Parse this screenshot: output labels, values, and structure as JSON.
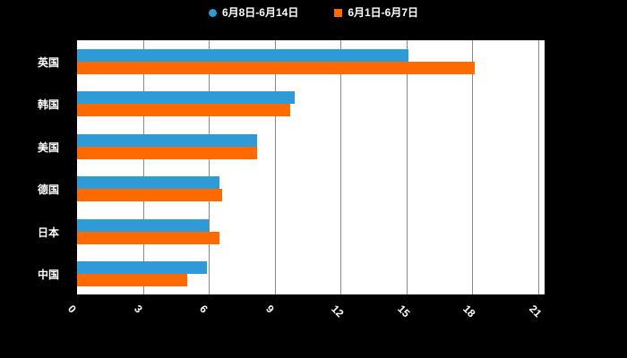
{
  "chart_data": {
    "type": "bar",
    "orientation": "horizontal",
    "title": "",
    "xlabel": "",
    "ylabel": "",
    "categories": [
      "英国",
      "韩国",
      "美国",
      "德国",
      "日本",
      "中国"
    ],
    "series": [
      {
        "name": "6月8日-6月14日",
        "color": "#2E9BD6",
        "marker": "circle",
        "values": [
          15.1,
          9.9,
          8.2,
          6.5,
          6.0,
          5.9
        ]
      },
      {
        "name": "6月1日-6月7日",
        "color": "#FF6A00",
        "marker": "square",
        "values": [
          18.1,
          9.7,
          8.2,
          6.6,
          6.5,
          5.0
        ]
      }
    ],
    "xlim": [
      0,
      21
    ],
    "xticks": [
      0,
      3,
      6,
      9,
      12,
      15,
      18,
      21
    ],
    "grid": true,
    "legend_position": "top",
    "plot_background": "#ffffff",
    "page_background": "#000000",
    "label_color": "#ffffff"
  }
}
